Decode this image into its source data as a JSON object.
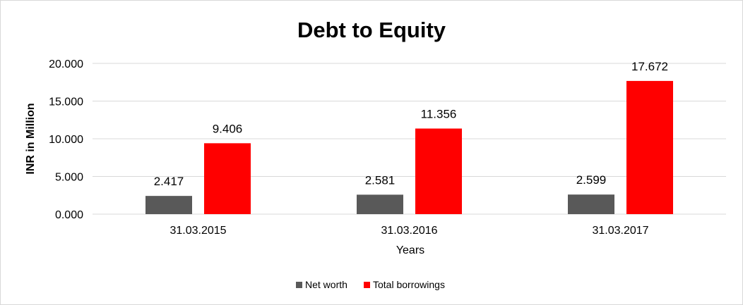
{
  "chart_data": {
    "type": "bar",
    "title": "Debt to Equity",
    "xlabel": "Years",
    "ylabel": "INR in Million",
    "categories": [
      "31.03.2015",
      "31.03.2016",
      "31.03.2017"
    ],
    "series": [
      {
        "name": "Net worth",
        "values": [
          2.417,
          2.581,
          2.599
        ],
        "value_labels": [
          "2.417",
          "2.581",
          "2.599"
        ],
        "color": "#595959"
      },
      {
        "name": "Total borrowings",
        "values": [
          9.406,
          11.356,
          17.672
        ],
        "value_labels": [
          "9.406",
          "11.356",
          "17.672"
        ],
        "color": "#ff0000"
      }
    ],
    "ylim": [
      0,
      20
    ],
    "yticks": [
      0,
      5,
      10,
      15,
      20
    ],
    "ytick_labels": [
      "0.000",
      "5.000",
      "10.000",
      "15.000",
      "20.000"
    ],
    "grid": true,
    "legend_position": "bottom"
  }
}
